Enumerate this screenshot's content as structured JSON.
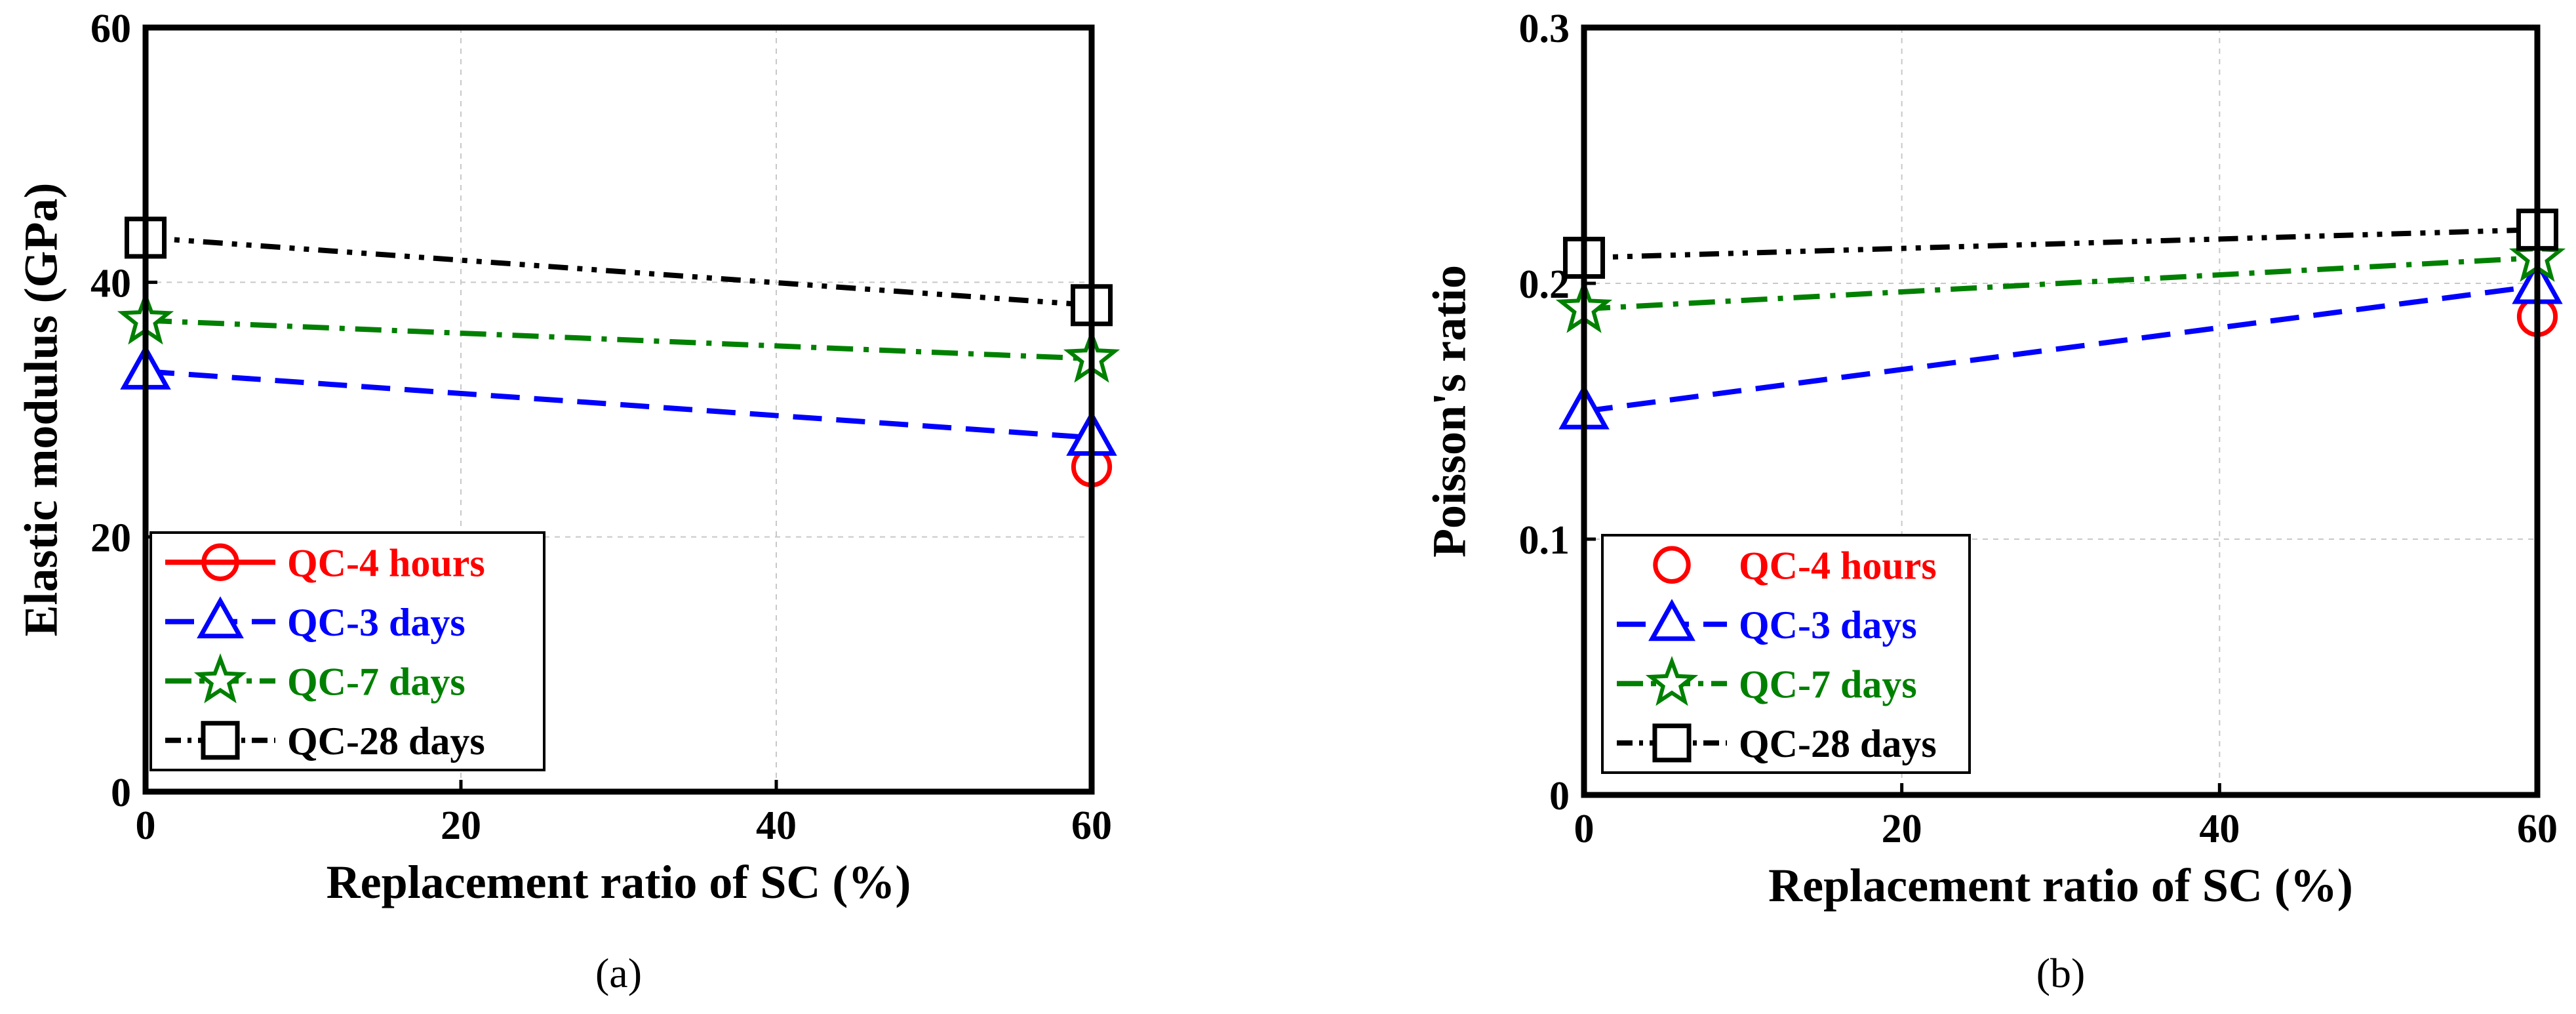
{
  "colors": {
    "qc4h": "#ff0000",
    "qc3d": "#0000ff",
    "qc7d": "#008000",
    "qc28d": "#000000"
  },
  "chart_data": [
    {
      "id": "a",
      "type": "line",
      "caption": "(a)",
      "xlabel": "Replacement ratio of SC (%)",
      "ylabel": "Elastic modulus (GPa)",
      "xlim": [
        0,
        60
      ],
      "ylim": [
        0,
        60
      ],
      "xticks": [
        0,
        20,
        40,
        60
      ],
      "yticks": [
        0,
        20,
        40,
        60
      ],
      "xtick_labels": [
        "0",
        "20",
        "40",
        "60"
      ],
      "ytick_labels": [
        "0",
        "20",
        "40",
        "60"
      ],
      "grid": true,
      "legend_position": "bottom-left",
      "series": [
        {
          "name": "QC-4 hours",
          "key": "qc4h",
          "marker": "circle",
          "dash": "solid",
          "x": [
            60
          ],
          "y": [
            25.5
          ]
        },
        {
          "name": "QC-3 days",
          "key": "qc3d",
          "marker": "triangle",
          "dash": "dash",
          "x": [
            0,
            60
          ],
          "y": [
            33,
            27.8
          ]
        },
        {
          "name": "QC-7 days",
          "key": "qc7d",
          "marker": "star",
          "dash": "dashdot",
          "x": [
            0,
            60
          ],
          "y": [
            37,
            34
          ]
        },
        {
          "name": "QC-28 days",
          "key": "qc28d",
          "marker": "square",
          "dash": "dashdotdot",
          "x": [
            0,
            60
          ],
          "y": [
            43.5,
            38.2
          ]
        }
      ]
    },
    {
      "id": "b",
      "type": "line",
      "caption": "(b)",
      "xlabel": "Replacement ratio of SC (%)",
      "ylabel": "Poisson's ratio",
      "xlim": [
        0,
        60
      ],
      "ylim": [
        0,
        0.3
      ],
      "xticks": [
        0,
        20,
        40,
        60
      ],
      "yticks": [
        0,
        0.1,
        0.2,
        0.3
      ],
      "xtick_labels": [
        "0",
        "20",
        "40",
        "60"
      ],
      "ytick_labels": [
        "0",
        "0.1",
        "0.2",
        "0.3"
      ],
      "grid": true,
      "legend_position": "bottom-left",
      "series": [
        {
          "name": "QC-4 hours",
          "key": "qc4h",
          "marker": "circle",
          "dash": "none",
          "x": [
            60
          ],
          "y": [
            0.187
          ]
        },
        {
          "name": "QC-3 days",
          "key": "qc3d",
          "marker": "triangle",
          "dash": "dash",
          "x": [
            0,
            60
          ],
          "y": [
            0.15,
            0.199
          ]
        },
        {
          "name": "QC-7 days",
          "key": "qc7d",
          "marker": "star",
          "dash": "dashdot",
          "x": [
            0,
            60
          ],
          "y": [
            0.19,
            0.21
          ]
        },
        {
          "name": "QC-28 days",
          "key": "qc28d",
          "marker": "square",
          "dash": "dashdotdot",
          "x": [
            0,
            60
          ],
          "y": [
            0.21,
            0.221
          ]
        }
      ]
    }
  ]
}
